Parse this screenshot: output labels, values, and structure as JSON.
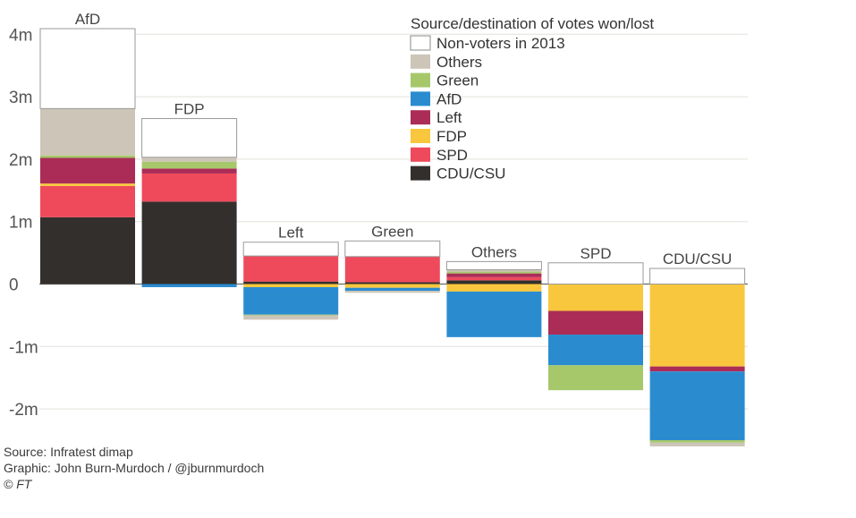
{
  "chart_data": {
    "type": "bar",
    "stacked": true,
    "title": "",
    "xlabel": "",
    "ylabel": "",
    "ylim": [
      -2.6,
      4.2
    ],
    "yticks": [
      {
        "value": 4,
        "label": "4m"
      },
      {
        "value": 3,
        "label": "3m"
      },
      {
        "value": 2,
        "label": "2m"
      },
      {
        "value": 1,
        "label": "1m"
      },
      {
        "value": 0,
        "label": "0"
      },
      {
        "value": -1,
        "label": "-1m"
      },
      {
        "value": -2,
        "label": "-2m"
      }
    ],
    "grid": true,
    "legend": {
      "title": "Source/destination of votes won/lost",
      "position": "top-right",
      "order": [
        "Non-voters in 2013",
        "Others",
        "Green",
        "AfD",
        "Left",
        "FDP",
        "SPD",
        "CDU/CSU"
      ]
    },
    "colors": {
      "Non-voters in 2013": "#ffffff",
      "Others": "#cdc5b8",
      "Green": "#a6c86b",
      "AfD": "#2a8ccf",
      "Left": "#ab2c57",
      "FDP": "#f8c73d",
      "SPD": "#ee4a5b",
      "CDU/CSU": "#332f2c"
    },
    "categories": [
      "AfD",
      "FDP",
      "Left",
      "Green",
      "Others",
      "SPD",
      "CDU/CSU"
    ],
    "series": [
      {
        "name": "CDU/CSU",
        "values": [
          1.07,
          1.32,
          0.04,
          0.03,
          0.06,
          0,
          0
        ]
      },
      {
        "name": "SPD",
        "values": [
          0.5,
          0.45,
          0.41,
          0.41,
          0.05,
          0,
          0
        ]
      },
      {
        "name": "FDP",
        "values": [
          0.04,
          0,
          -0.05,
          -0.06,
          -0.12,
          -0.43,
          -1.32
        ]
      },
      {
        "name": "Left",
        "values": [
          0.41,
          0.08,
          0,
          0,
          0.06,
          -0.38,
          -0.08
        ]
      },
      {
        "name": "AfD",
        "values": [
          0,
          -0.05,
          -0.44,
          -0.05,
          -0.73,
          -0.49,
          -1.1
        ]
      },
      {
        "name": "Green",
        "values": [
          0.04,
          0.11,
          -0.01,
          0,
          0.03,
          -0.4,
          -0.04
        ]
      },
      {
        "name": "Others",
        "values": [
          0.75,
          0.07,
          -0.07,
          -0.03,
          0.03,
          0,
          -0.06
        ]
      },
      {
        "name": "Non-voters in 2013",
        "values": [
          1.28,
          0.62,
          0.22,
          0.25,
          0.13,
          0.34,
          0.25
        ]
      }
    ]
  },
  "footer": {
    "source": "Source: Infratest dimap",
    "graphic": "Graphic: John Burn-Murdoch / @jburnmurdoch",
    "copyright": "© FT"
  }
}
